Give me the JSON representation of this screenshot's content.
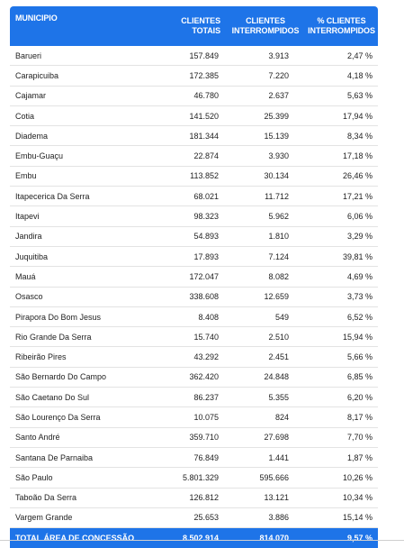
{
  "header": {
    "municipio": "MUNICIPIO",
    "clientes_totais": [
      "CLIENTES",
      "TOTAIS"
    ],
    "clientes_interrompidos": [
      "CLIENTES",
      "INTERROMPIDOS"
    ],
    "pct_interrompidos": [
      "% CLIENTES",
      "INTERROMPIDOS"
    ]
  },
  "rows": [
    {
      "municipio": "Barueri",
      "totais": "157.849",
      "interrompidos": "3.913",
      "pct": "2,47 %"
    },
    {
      "municipio": "Carapicuiba",
      "totais": "172.385",
      "interrompidos": "7.220",
      "pct": "4,18 %"
    },
    {
      "municipio": "Cajamar",
      "totais": "46.780",
      "interrompidos": "2.637",
      "pct": "5,63 %"
    },
    {
      "municipio": "Cotia",
      "totais": "141.520",
      "interrompidos": "25.399",
      "pct": "17,94 %"
    },
    {
      "municipio": "Diadema",
      "totais": "181.344",
      "interrompidos": "15.139",
      "pct": "8,34 %"
    },
    {
      "municipio": "Embu-Guaçu",
      "totais": "22.874",
      "interrompidos": "3.930",
      "pct": "17,18 %"
    },
    {
      "municipio": "Embu",
      "totais": "113.852",
      "interrompidos": "30.134",
      "pct": "26,46 %"
    },
    {
      "municipio": "Itapecerica Da Serra",
      "totais": "68.021",
      "interrompidos": "11.712",
      "pct": "17,21 %"
    },
    {
      "municipio": "Itapevi",
      "totais": "98.323",
      "interrompidos": "5.962",
      "pct": "6,06 %"
    },
    {
      "municipio": "Jandira",
      "totais": "54.893",
      "interrompidos": "1.810",
      "pct": "3,29 %"
    },
    {
      "municipio": "Juquitiba",
      "totais": "17.893",
      "interrompidos": "7.124",
      "pct": "39,81 %"
    },
    {
      "municipio": "Mauá",
      "totais": "172.047",
      "interrompidos": "8.082",
      "pct": "4,69 %"
    },
    {
      "municipio": "Osasco",
      "totais": "338.608",
      "interrompidos": "12.659",
      "pct": "3,73 %"
    },
    {
      "municipio": "Pirapora Do Bom Jesus",
      "totais": "8.408",
      "interrompidos": "549",
      "pct": "6,52 %"
    },
    {
      "municipio": "Rio Grande Da Serra",
      "totais": "15.740",
      "interrompidos": "2.510",
      "pct": "15,94 %"
    },
    {
      "municipio": "Ribeirão Pires",
      "totais": "43.292",
      "interrompidos": "2.451",
      "pct": "5,66 %"
    },
    {
      "municipio": "São Bernardo Do Campo",
      "totais": "362.420",
      "interrompidos": "24.848",
      "pct": "6,85 %"
    },
    {
      "municipio": "São Caetano Do Sul",
      "totais": "86.237",
      "interrompidos": "5.355",
      "pct": "6,20 %"
    },
    {
      "municipio": "São Lourenço Da Serra",
      "totais": "10.075",
      "interrompidos": "824",
      "pct": "8,17 %"
    },
    {
      "municipio": "Santo André",
      "totais": "359.710",
      "interrompidos": "27.698",
      "pct": "7,70 %"
    },
    {
      "municipio": "Santana De Parnaiba",
      "totais": "76.849",
      "interrompidos": "1.441",
      "pct": "1,87 %"
    },
    {
      "municipio": "São Paulo",
      "totais": "5.801.329",
      "interrompidos": "595.666",
      "pct": "10,26 %"
    },
    {
      "municipio": "Taboão Da Serra",
      "totais": "126.812",
      "interrompidos": "13.121",
      "pct": "10,34 %"
    },
    {
      "municipio": "Vargem Grande",
      "totais": "25.653",
      "interrompidos": "3.886",
      "pct": "15,14 %"
    }
  ],
  "total": {
    "label": "TOTAL ÁREA DE CONCESSÃO",
    "totais": "8.502.914",
    "interrompidos": "814.070",
    "pct": "9,57 %"
  },
  "colors": {
    "header_bg": "#1e74e8",
    "header_text": "#ffffff",
    "row_border": "#e3e3e3"
  }
}
